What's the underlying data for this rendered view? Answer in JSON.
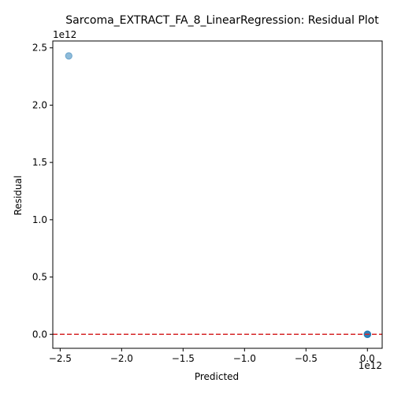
{
  "chart_data": {
    "type": "scatter",
    "title": "Sarcoma_EXTRACT_FA_8_LinearRegression: Residual Plot",
    "xlabel": "Predicted",
    "ylabel": "Residual",
    "x_offset_label": "1e12",
    "y_offset_label": "1e12",
    "xlim": [
      -2560000000000.0,
      120000000000.0
    ],
    "ylim": [
      -122000000000.0,
      2560000000000.0
    ],
    "x_ticks": [
      -2.5,
      -2.0,
      -1.5,
      -1.0,
      -0.5,
      0.0
    ],
    "x_tick_labels": [
      "−2.5",
      "−2.0",
      "−1.5",
      "−1.0",
      "−0.5",
      "0.0"
    ],
    "y_ticks": [
      0.0,
      0.5,
      1.0,
      1.5,
      2.0,
      2.5
    ],
    "y_tick_labels": [
      "0.0",
      "0.5",
      "1.0",
      "1.5",
      "2.0",
      "2.5"
    ],
    "tick_scale": 1000000000000.0,
    "points": [
      {
        "x": -2430000000000.0,
        "y": 2430000000000.0
      },
      {
        "x": 0.0,
        "y": 0.0
      },
      {
        "x": 0.0,
        "y": 0.0
      },
      {
        "x": 0.0,
        "y": 0.0
      },
      {
        "x": 0.0,
        "y": 0.0
      }
    ],
    "reference_line": {
      "y": 0,
      "style": "dashed",
      "color": "#d62728"
    },
    "point_color": "#1f77b4",
    "point_alpha": 0.5,
    "grid": false,
    "legend": "none"
  }
}
